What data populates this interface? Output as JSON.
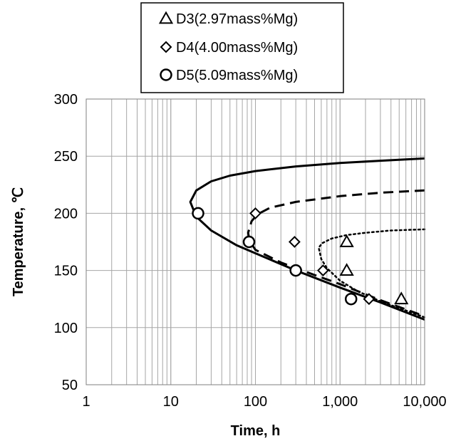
{
  "chart_data": {
    "type": "scatter",
    "title": "",
    "xlabel": "Time, h",
    "ylabel": "Temperature, ℃",
    "xscale": "log",
    "xlim": [
      1,
      10000
    ],
    "ylim": [
      50,
      300
    ],
    "x_ticks": [
      1,
      10,
      100,
      1000,
      10000
    ],
    "x_tick_labels": [
      "1",
      "10",
      "100",
      "1,000",
      "10,000"
    ],
    "y_ticks": [
      50,
      100,
      150,
      200,
      250,
      300
    ],
    "y_tick_labels": [
      "50",
      "100",
      "150",
      "200",
      "250",
      "300"
    ],
    "grid": true,
    "legend_position": "top",
    "series": [
      {
        "name": "D3(2.97mass%Mg)",
        "marker": "triangle",
        "points": [
          [
            1200,
            175
          ],
          [
            1200,
            150
          ],
          [
            5300,
            125
          ]
        ],
        "curve_style": "dotted",
        "curve_upper": [
          [
            560,
            170
          ],
          [
            620,
            174
          ],
          [
            800,
            178
          ],
          [
            1200,
            181
          ],
          [
            2000,
            183
          ],
          [
            4000,
            185
          ],
          [
            10000,
            186
          ]
        ],
        "curve_lower": [
          [
            560,
            170
          ],
          [
            600,
            160
          ],
          [
            700,
            152
          ],
          [
            1000,
            141
          ],
          [
            1600,
            132
          ],
          [
            3000,
            123
          ],
          [
            10000,
            109
          ]
        ]
      },
      {
        "name": "D4(4.00mass%Mg)",
        "marker": "diamond",
        "points": [
          [
            100,
            200
          ],
          [
            290,
            175
          ],
          [
            630,
            150
          ],
          [
            2200,
            125
          ]
        ],
        "curve_style": "dashed",
        "curve_upper": [
          [
            82,
            183
          ],
          [
            90,
            193
          ],
          [
            105,
            199
          ],
          [
            150,
            205
          ],
          [
            300,
            210
          ],
          [
            1000,
            215
          ],
          [
            3000,
            218
          ],
          [
            10000,
            220
          ]
        ],
        "curve_lower": [
          [
            82,
            183
          ],
          [
            85,
            176
          ],
          [
            100,
            168
          ],
          [
            200,
            157
          ],
          [
            500,
            146
          ],
          [
            1000,
            138
          ],
          [
            3000,
            124
          ],
          [
            10000,
            110
          ]
        ]
      },
      {
        "name": "D5(5.09mass%Mg)",
        "marker": "circle",
        "points": [
          [
            21,
            200
          ],
          [
            84,
            175
          ],
          [
            300,
            150
          ],
          [
            1350,
            125
          ]
        ],
        "curve_style": "solid",
        "curve_upper": [
          [
            17,
            210
          ],
          [
            20,
            220
          ],
          [
            30,
            228
          ],
          [
            50,
            233
          ],
          [
            100,
            237
          ],
          [
            300,
            241
          ],
          [
            1000,
            244
          ],
          [
            3000,
            246
          ],
          [
            10000,
            248
          ]
        ],
        "curve_lower": [
          [
            17,
            210
          ],
          [
            20,
            197
          ],
          [
            30,
            185
          ],
          [
            60,
            172
          ],
          [
            100,
            165
          ],
          [
            300,
            150
          ],
          [
            1000,
            135
          ],
          [
            3000,
            122
          ],
          [
            10000,
            107
          ]
        ]
      }
    ]
  }
}
